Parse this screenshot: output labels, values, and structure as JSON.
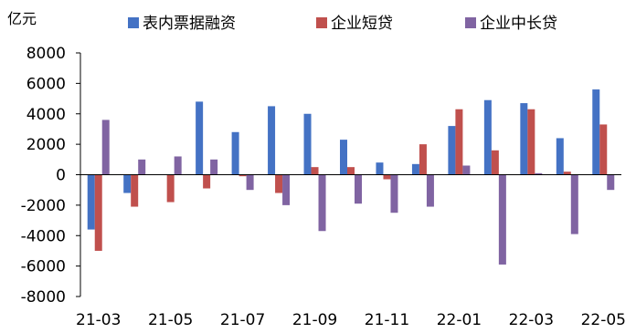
{
  "chart_data": {
    "type": "bar",
    "unit_label": "亿元",
    "categories": [
      "21-03",
      "21-04",
      "21-05",
      "21-06",
      "21-07",
      "21-08",
      "21-09",
      "21-10",
      "21-11",
      "21-12",
      "22-01",
      "22-02",
      "22-03",
      "22-04",
      "22-05"
    ],
    "x_tick_labels": [
      "21-03",
      "21-05",
      "21-07",
      "21-09",
      "21-11",
      "22-01",
      "22-03",
      "22-05"
    ],
    "y_ticks": [
      "8000",
      "6000",
      "4000",
      "2000",
      "0",
      "-2000",
      "-4000",
      "-6000",
      "-8000"
    ],
    "ylim": [
      -8000,
      8000
    ],
    "legend_position": "top",
    "grid": false,
    "series": [
      {
        "name": "表内票据融资",
        "color": "#4472C4",
        "values": [
          -3600,
          -1200,
          0,
          4800,
          2800,
          4500,
          4000,
          2300,
          800,
          700,
          3200,
          4900,
          4700,
          2400,
          5600
        ]
      },
      {
        "name": "企业短贷",
        "color": "#C0504D",
        "values": [
          -5000,
          -2100,
          -1800,
          -900,
          -100,
          -1200,
          500,
          500,
          -300,
          2000,
          4300,
          1600,
          4300,
          200,
          3300
        ]
      },
      {
        "name": "企业中长贷",
        "color": "#8064A2",
        "values": [
          3600,
          1000,
          1200,
          1000,
          -1000,
          -2000,
          -3700,
          -1900,
          -2500,
          -2100,
          600,
          -5900,
          100,
          -3900,
          -1000
        ]
      }
    ]
  }
}
